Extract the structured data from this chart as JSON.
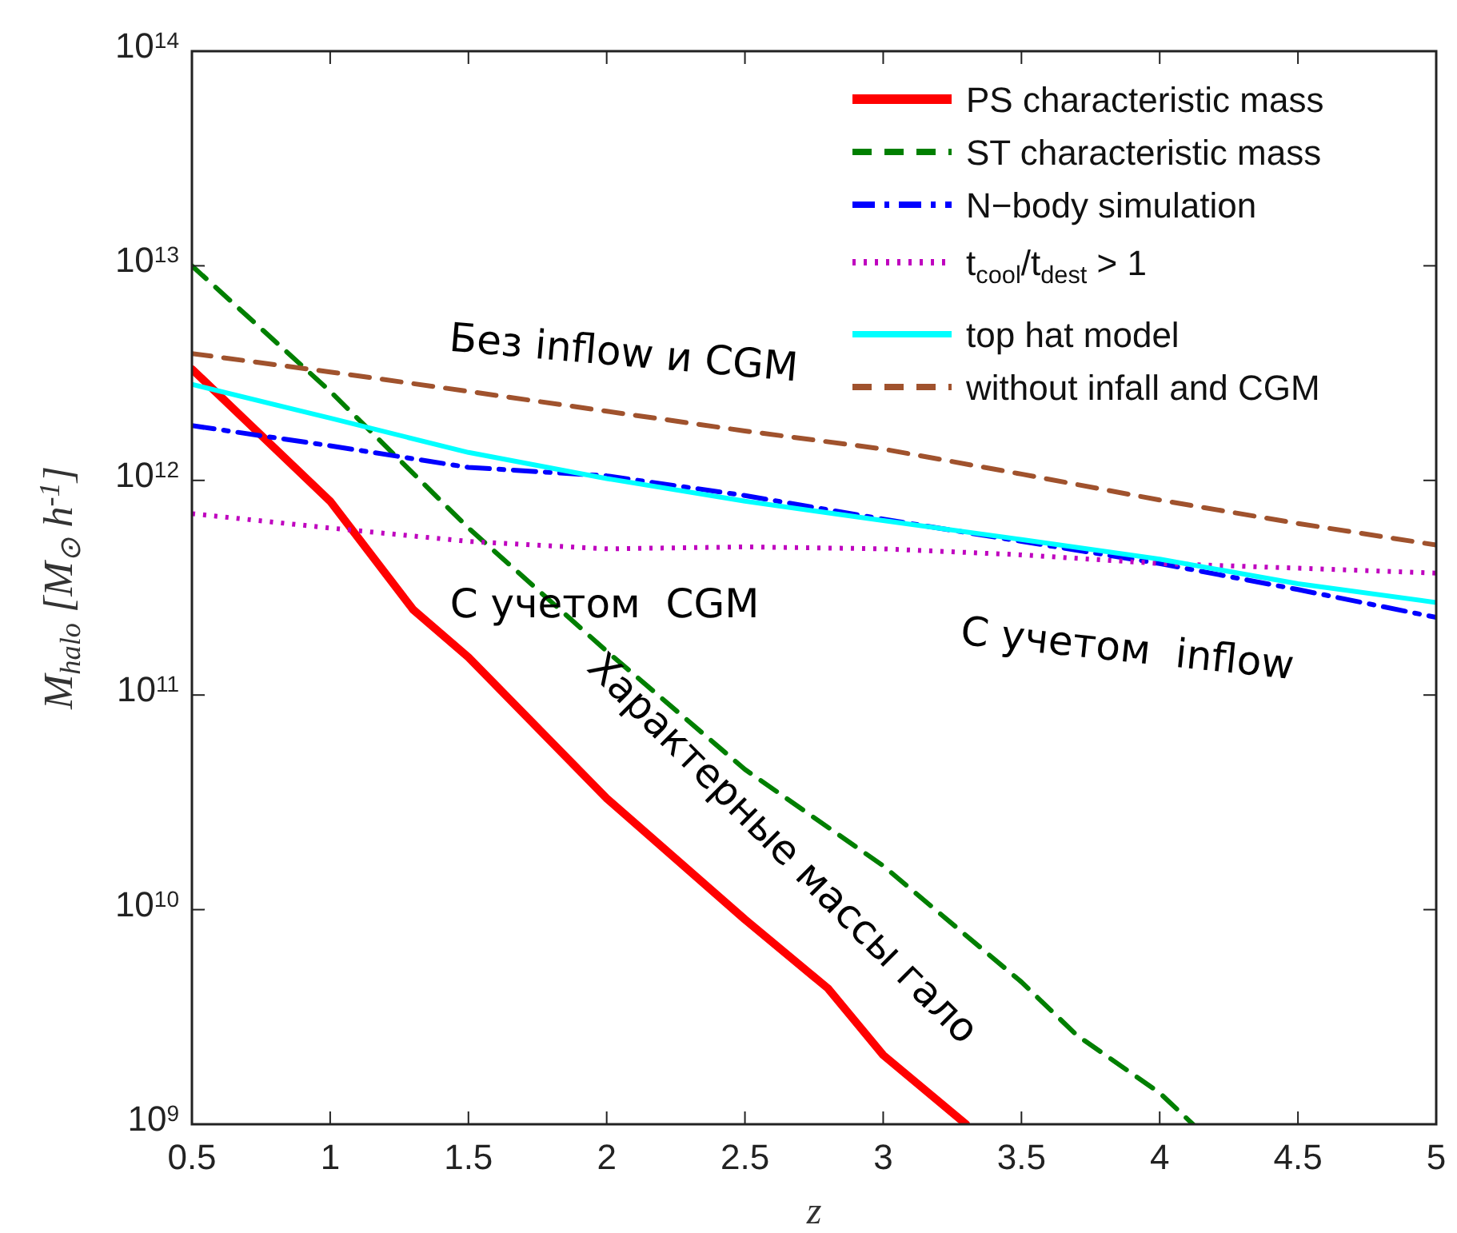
{
  "chart_data": {
    "type": "line",
    "xlabel": "z",
    "ylabel": "M$_{halo}$ [M$_{⊙}$ h$^{-1}$]",
    "log": "y",
    "xlim": [
      0.5,
      5
    ],
    "ylim": [
      1000000000.0,
      100000000000000.0
    ],
    "xticks": [
      0.5,
      1,
      1.5,
      2,
      2.5,
      3,
      3.5,
      4,
      4.5,
      5
    ],
    "yticks": [
      {
        "value": 1000000000.0,
        "label": "10$^{9}$"
      },
      {
        "value": 10000000000.0,
        "label": "10$^{10}$"
      },
      {
        "value": 100000000000.0,
        "label": "10$^{11}$"
      },
      {
        "value": 1000000000000.0,
        "label": "10$^{12}$"
      },
      {
        "value": 10000000000000.0,
        "label": "10$^{13}$"
      },
      {
        "value": 100000000000000.0,
        "label": "10$^{14}$"
      }
    ],
    "grid": false,
    "legend": "top right",
    "marker": "none",
    "series": [
      {
        "name": "PS characteristic mass",
        "color": "#ff0000",
        "line_style": "solid",
        "x": [
          0.5,
          1,
          1.3,
          1.5,
          2,
          2.5,
          2.8,
          3,
          3.3
        ],
        "values": [
          3300000000000.0,
          800000000000.0,
          250000000000.0,
          150000000000.0,
          33000000000.0,
          9000000000.0,
          4300000000.0,
          2100000000.0,
          1000000000.0
        ]
      },
      {
        "name": "ST characteristic mass",
        "color": "#007f00",
        "line_style": "dashed",
        "x": [
          0.5,
          1,
          1.5,
          2,
          2.5,
          3,
          3.5,
          3.7,
          4,
          4.12
        ],
        "values": [
          10000000000000.0,
          2600000000000.0,
          600000000000.0,
          160000000000.0,
          45000000000.0,
          16000000000.0,
          4600000000.0,
          2600000000.0,
          1400000000.0,
          1000000000.0
        ]
      },
      {
        "name": "N−body simulation",
        "color": "#0000ff",
        "line_style": "dashdot",
        "x": [
          0.5,
          1,
          1.5,
          2,
          2.5,
          3,
          3.5,
          4,
          4.5,
          5
        ],
        "values": [
          1800000000000.0,
          1450000000000.0,
          1150000000000.0,
          1050000000000.0,
          850000000000.0,
          660000000000.0,
          520000000000.0,
          410000000000.0,
          310000000000.0,
          230000000000.0
        ]
      },
      {
        "name": "t$_{cool}$/t$_{dest}$ > 1",
        "color": "#bf00bf",
        "line_style": "dotted",
        "x": [
          0.5,
          1,
          1.5,
          2,
          2.5,
          3,
          3.5,
          4,
          4.5,
          5
        ],
        "values": [
          700000000000.0,
          600000000000.0,
          520000000000.0,
          480000000000.0,
          490000000000.0,
          480000000000.0,
          450000000000.0,
          410000000000.0,
          390000000000.0,
          370000000000.0
        ]
      },
      {
        "name": "top hat model",
        "color": "#00ffff",
        "line_style": "solid",
        "x": [
          0.5,
          1,
          1.5,
          2,
          2.5,
          3,
          3.5,
          4,
          4.5,
          5
        ],
        "values": [
          2800000000000.0,
          1950000000000.0,
          1350000000000.0,
          1020000000000.0,
          800000000000.0,
          650000000000.0,
          530000000000.0,
          430000000000.0,
          330000000000.0,
          270000000000.0
        ]
      },
      {
        "name": "without infall and CGM",
        "color": "#a0522d",
        "line_style": "dashed",
        "x": [
          0.5,
          1,
          1.5,
          2,
          2.5,
          3,
          3.5,
          4,
          4.5,
          5
        ],
        "values": [
          3900000000000.0,
          3200000000000.0,
          2600000000000.0,
          2100000000000.0,
          1700000000000.0,
          1400000000000.0,
          1070000000000.0,
          810000000000.0,
          630000000000.0,
          500000000000.0
        ]
      }
    ],
    "annotations": [
      "Без inflow и CGM",
      "С учетом  CGM",
      "С учетом  inflow",
      "Характерные массы гало"
    ]
  }
}
